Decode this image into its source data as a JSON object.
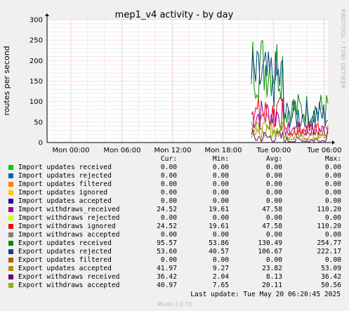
{
  "chart_data": {
    "type": "line",
    "title": "mep1_v4 activity - by day",
    "ylabel": "routes per second",
    "ylim": [
      0,
      300
    ],
    "yticks": [
      0,
      50,
      100,
      150,
      200,
      250,
      300
    ],
    "xticks": [
      "Mon 00:00",
      "Mon 06:00",
      "Mon 12:00",
      "Mon 18:00",
      "Tue 00:00",
      "Tue 06:00"
    ],
    "grid": true,
    "columns": [
      "Cur:",
      "Min:",
      "Avg:",
      "Max:"
    ],
    "series": [
      {
        "name": "Import updates received",
        "color": "#00cc00",
        "cur": "0.00",
        "min": "0.00",
        "avg": "0.00",
        "max": "0.00"
      },
      {
        "name": "Import updates rejected",
        "color": "#0066b3",
        "cur": "0.00",
        "min": "0.00",
        "avg": "0.00",
        "max": "0.00"
      },
      {
        "name": "Import updates filtered",
        "color": "#ff8000",
        "cur": "0.00",
        "min": "0.00",
        "avg": "0.00",
        "max": "0.00"
      },
      {
        "name": "Import updates ignored",
        "color": "#ffcc00",
        "cur": "0.00",
        "min": "0.00",
        "avg": "0.00",
        "max": "0.00"
      },
      {
        "name": "Import updates accepted",
        "color": "#330099",
        "cur": "0.00",
        "min": "0.00",
        "avg": "0.00",
        "max": "0.00"
      },
      {
        "name": "Import withdraws_received",
        "color": "#990099",
        "cur": "24.52",
        "min": "19.61",
        "avg": "47.58",
        "max": "110.20"
      },
      {
        "name": "Import withdraws rejected",
        "color": "#ccff00",
        "cur": "0.00",
        "min": "0.00",
        "avg": "0.00",
        "max": "0.00"
      },
      {
        "name": "Import withdraws ignored",
        "color": "#ff0000",
        "cur": "24.52",
        "min": "19.61",
        "avg": "47.58",
        "max": "110.20"
      },
      {
        "name": "Import withdraws accepted",
        "color": "#808080",
        "cur": "0.00",
        "min": "0.00",
        "avg": "0.00",
        "max": "0.00"
      },
      {
        "name": "Export updates received",
        "color": "#008f00",
        "cur": "95.57",
        "min": "53.86",
        "avg": "130.49",
        "max": "254.77"
      },
      {
        "name": "Export updates rejected",
        "color": "#00487d",
        "cur": "53.60",
        "min": "40.57",
        "avg": "106.67",
        "max": "222.17"
      },
      {
        "name": "Export updates filtered",
        "color": "#b35a00",
        "cur": "0.00",
        "min": "0.00",
        "avg": "0.00",
        "max": "0.00"
      },
      {
        "name": "Export updates accepted",
        "color": "#b38f00",
        "cur": "41.97",
        "min": "9.27",
        "avg": "23.82",
        "max": "53.09"
      },
      {
        "name": "Export withdraws received",
        "color": "#6b006b",
        "cur": "36.42",
        "min": "2.04",
        "avg": "8.13",
        "max": "36.42"
      },
      {
        "name": "Export withdraws accepted",
        "color": "#8fb300",
        "cur": "40.97",
        "min": "7.65",
        "avg": "20.11",
        "max": "50.56"
      }
    ]
  },
  "footer": {
    "last_update": "Last update: Tue May 20 06:20:45 2025",
    "generator": "Munin 2.0.73",
    "side_label": "RRDTOOL / TOBI OETIKER"
  }
}
